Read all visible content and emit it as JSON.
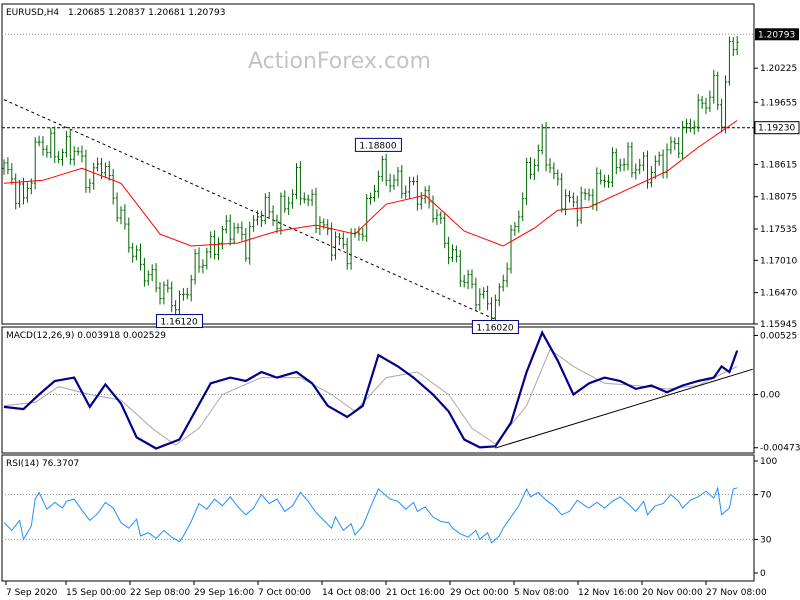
{
  "chart_data": {
    "type": "candlestick",
    "header": {
      "symbol_tf": "EURUSD,H4",
      "ohlc": "1.20685 1.20837 1.20681 1.20793"
    },
    "watermark": "ActionForex.com",
    "x_labels": [
      "7 Sep 2020",
      "15 Sep 00:00",
      "22 Sep 08:00",
      "29 Sep 16:00",
      "7 Oct 00:00",
      "14 Oct 08:00",
      "21 Oct 16:00",
      "29 Oct 00:00",
      "5 Nov 08:00",
      "12 Nov 16:00",
      "20 Nov 00:00",
      "27 Nov 08:00"
    ],
    "price_panel": {
      "ylim": [
        1.15945,
        1.213
      ],
      "ticks": [
        "1.20225",
        "1.19655",
        "1.19230",
        "1.18615",
        "1.18075",
        "1.17535",
        "1.17010",
        "1.16470",
        "1.15945"
      ],
      "last_price": "1.20793",
      "hline_price": "1.19230",
      "annotations": [
        {
          "label": "1.18800",
          "price": 1.188,
          "date_index": 96
        },
        {
          "label": "1.16120",
          "price": 1.1612,
          "date_index": 45
        },
        {
          "label": "1.16020",
          "price": 1.1602,
          "date_index": 126
        }
      ],
      "trendline": {
        "start": {
          "date_index": 0,
          "price": 1.197
        },
        "end": {
          "date_index": 126,
          "price": 1.1602
        }
      },
      "close_path": [
        [
          0,
          1.1855
        ],
        [
          5,
          1.18
        ],
        [
          9,
          1.19
        ],
        [
          14,
          1.188
        ],
        [
          18,
          1.189
        ],
        [
          22,
          1.183
        ],
        [
          25,
          1.187
        ],
        [
          30,
          1.177
        ],
        [
          34,
          1.17
        ],
        [
          39,
          1.166
        ],
        [
          45,
          1.1625
        ],
        [
          49,
          1.169
        ],
        [
          53,
          1.172
        ],
        [
          58,
          1.176
        ],
        [
          62,
          1.173
        ],
        [
          66,
          1.179
        ],
        [
          70,
          1.177
        ],
        [
          75,
          1.183
        ],
        [
          79,
          1.179
        ],
        [
          83,
          1.174
        ],
        [
          88,
          1.172
        ],
        [
          92,
          1.176
        ],
        [
          96,
          1.185
        ],
        [
          101,
          1.183
        ],
        [
          105,
          1.182
        ],
        [
          110,
          1.179
        ],
        [
          114,
          1.172
        ],
        [
          118,
          1.167
        ],
        [
          122,
          1.164
        ],
        [
          126,
          1.162
        ],
        [
          130,
          1.173
        ],
        [
          134,
          1.184
        ],
        [
          138,
          1.19
        ],
        [
          142,
          1.182
        ],
        [
          146,
          1.179
        ],
        [
          150,
          1.181
        ],
        [
          154,
          1.184
        ],
        [
          158,
          1.187
        ],
        [
          162,
          1.186
        ],
        [
          166,
          1.185
        ],
        [
          170,
          1.188
        ],
        [
          174,
          1.191
        ],
        [
          178,
          1.195
        ],
        [
          182,
          1.199
        ],
        [
          184,
          1.194
        ],
        [
          186,
          1.205
        ],
        [
          188,
          1.2079
        ]
      ],
      "ma_path": [
        [
          0,
          1.183
        ],
        [
          10,
          1.1835
        ],
        [
          20,
          1.1855
        ],
        [
          30,
          1.183
        ],
        [
          40,
          1.1745
        ],
        [
          48,
          1.1725
        ],
        [
          60,
          1.173
        ],
        [
          70,
          1.175
        ],
        [
          80,
          1.176
        ],
        [
          90,
          1.1745
        ],
        [
          98,
          1.1795
        ],
        [
          108,
          1.181
        ],
        [
          118,
          1.175
        ],
        [
          128,
          1.1725
        ],
        [
          136,
          1.1755
        ],
        [
          142,
          1.1785
        ],
        [
          150,
          1.179
        ],
        [
          160,
          1.182
        ],
        [
          170,
          1.185
        ],
        [
          178,
          1.189
        ],
        [
          188,
          1.1935
        ]
      ]
    },
    "macd_panel": {
      "label": "MACD(12,26,9) 0.003918 0.002529",
      "ylim": [
        -0.0052,
        0.006
      ],
      "ticks": [
        "0.00525",
        "0.00",
        "-0.004732"
      ],
      "main_path": [
        [
          0,
          -0.0011
        ],
        [
          5,
          -0.0013
        ],
        [
          9,
          0.0
        ],
        [
          13,
          0.0012
        ],
        [
          18,
          0.0015
        ],
        [
          22,
          -0.0011
        ],
        [
          26,
          0.0009
        ],
        [
          30,
          -0.0008
        ],
        [
          34,
          -0.0038
        ],
        [
          39,
          -0.0048
        ],
        [
          45,
          -0.004
        ],
        [
          49,
          -0.0015
        ],
        [
          53,
          0.001
        ],
        [
          58,
          0.0015
        ],
        [
          62,
          0.0012
        ],
        [
          66,
          0.002
        ],
        [
          70,
          0.0015
        ],
        [
          75,
          0.002
        ],
        [
          79,
          0.001
        ],
        [
          83,
          -0.001
        ],
        [
          88,
          -0.002
        ],
        [
          92,
          -0.001
        ],
        [
          96,
          0.0035
        ],
        [
          101,
          0.0025
        ],
        [
          105,
          0.0015
        ],
        [
          110,
          0.0
        ],
        [
          114,
          -0.0015
        ],
        [
          118,
          -0.004
        ],
        [
          122,
          -0.0047
        ],
        [
          126,
          -0.0046
        ],
        [
          130,
          -0.0025
        ],
        [
          134,
          0.002
        ],
        [
          138,
          0.0055
        ],
        [
          142,
          0.003
        ],
        [
          146,
          0.0
        ],
        [
          150,
          0.001
        ],
        [
          154,
          0.0015
        ],
        [
          158,
          0.0012
        ],
        [
          162,
          0.0005
        ],
        [
          166,
          0.0008
        ],
        [
          170,
          0.0002
        ],
        [
          174,
          0.0008
        ],
        [
          178,
          0.0012
        ],
        [
          182,
          0.0015
        ],
        [
          184,
          0.0025
        ],
        [
          186,
          0.002
        ],
        [
          188,
          0.0039
        ]
      ],
      "signal_path": [
        [
          0,
          -0.001
        ],
        [
          8,
          -0.0007
        ],
        [
          14,
          0.0007
        ],
        [
          22,
          0.0
        ],
        [
          30,
          -0.0005
        ],
        [
          38,
          -0.003
        ],
        [
          44,
          -0.0045
        ],
        [
          50,
          -0.003
        ],
        [
          56,
          0.0
        ],
        [
          66,
          0.0015
        ],
        [
          76,
          0.0015
        ],
        [
          84,
          0.0
        ],
        [
          90,
          -0.0015
        ],
        [
          98,
          0.0015
        ],
        [
          106,
          0.002
        ],
        [
          114,
          0.0
        ],
        [
          120,
          -0.003
        ],
        [
          126,
          -0.0044
        ],
        [
          134,
          -0.001
        ],
        [
          140,
          0.004
        ],
        [
          146,
          0.0025
        ],
        [
          154,
          0.001
        ],
        [
          162,
          0.0008
        ],
        [
          170,
          0.0005
        ],
        [
          178,
          0.0008
        ],
        [
          188,
          0.0025
        ]
      ],
      "trendline": {
        "start": {
          "date_index": 126,
          "value": -0.00476
        },
        "end": {
          "date_index": 192,
          "value": 0.00225
        }
      }
    },
    "rsi_panel": {
      "label": "RSI(14) 76.3707",
      "ylim": [
        0,
        100
      ],
      "ticks": [
        "100",
        "70",
        "30",
        "0"
      ],
      "levels": [
        70,
        30
      ],
      "path": [
        [
          0,
          45
        ],
        [
          2,
          38
        ],
        [
          4,
          47
        ],
        [
          5,
          30
        ],
        [
          7,
          42
        ],
        [
          8,
          66
        ],
        [
          9,
          72
        ],
        [
          11,
          57
        ],
        [
          13,
          63
        ],
        [
          15,
          58
        ],
        [
          16,
          64
        ],
        [
          18,
          66
        ],
        [
          20,
          56
        ],
        [
          22,
          47
        ],
        [
          24,
          53
        ],
        [
          26,
          63
        ],
        [
          28,
          58
        ],
        [
          30,
          45
        ],
        [
          32,
          40
        ],
        [
          34,
          48
        ],
        [
          35,
          33
        ],
        [
          37,
          36
        ],
        [
          39,
          31
        ],
        [
          41,
          38
        ],
        [
          43,
          32
        ],
        [
          45,
          28
        ],
        [
          46,
          33
        ],
        [
          48,
          46
        ],
        [
          50,
          62
        ],
        [
          52,
          57
        ],
        [
          54,
          66
        ],
        [
          56,
          60
        ],
        [
          58,
          68
        ],
        [
          60,
          59
        ],
        [
          62,
          52
        ],
        [
          64,
          58
        ],
        [
          66,
          70
        ],
        [
          68,
          62
        ],
        [
          70,
          66
        ],
        [
          72,
          55
        ],
        [
          74,
          60
        ],
        [
          76,
          72
        ],
        [
          78,
          64
        ],
        [
          80,
          54
        ],
        [
          82,
          47
        ],
        [
          84,
          40
        ],
        [
          85,
          50
        ],
        [
          87,
          38
        ],
        [
          89,
          44
        ],
        [
          90,
          34
        ],
        [
          92,
          42
        ],
        [
          94,
          59
        ],
        [
          96,
          75
        ],
        [
          97,
          72
        ],
        [
          99,
          66
        ],
        [
          101,
          64
        ],
        [
          103,
          57
        ],
        [
          105,
          63
        ],
        [
          106,
          55
        ],
        [
          108,
          59
        ],
        [
          110,
          50
        ],
        [
          112,
          46
        ],
        [
          114,
          45
        ],
        [
          115,
          40
        ],
        [
          117,
          35
        ],
        [
          119,
          32
        ],
        [
          121,
          38
        ],
        [
          122,
          30
        ],
        [
          124,
          36
        ],
        [
          125,
          27
        ],
        [
          127,
          33
        ],
        [
          128,
          40
        ],
        [
          130,
          50
        ],
        [
          132,
          60
        ],
        [
          134,
          75
        ],
        [
          135,
          68
        ],
        [
          137,
          72
        ],
        [
          139,
          65
        ],
        [
          141,
          60
        ],
        [
          143,
          52
        ],
        [
          145,
          55
        ],
        [
          147,
          65
        ],
        [
          149,
          60
        ],
        [
          150,
          58
        ],
        [
          152,
          63
        ],
        [
          154,
          58
        ],
        [
          156,
          64
        ],
        [
          158,
          68
        ],
        [
          160,
          62
        ],
        [
          162,
          55
        ],
        [
          164,
          64
        ],
        [
          165,
          52
        ],
        [
          167,
          60
        ],
        [
          169,
          62
        ],
        [
          171,
          70
        ],
        [
          173,
          64
        ],
        [
          174,
          58
        ],
        [
          176,
          65
        ],
        [
          178,
          68
        ],
        [
          180,
          73
        ],
        [
          182,
          67
        ],
        [
          183,
          76
        ],
        [
          184,
          52
        ],
        [
          186,
          58
        ],
        [
          187,
          75
        ],
        [
          188,
          76
        ]
      ]
    },
    "colors": {
      "candle": "#006400",
      "ma": "#ff0000",
      "macd_main": "#00008b",
      "macd_signal": "#a9a9a9",
      "rsi": "#1e90ff",
      "grid_dash": "#909090"
    }
  }
}
